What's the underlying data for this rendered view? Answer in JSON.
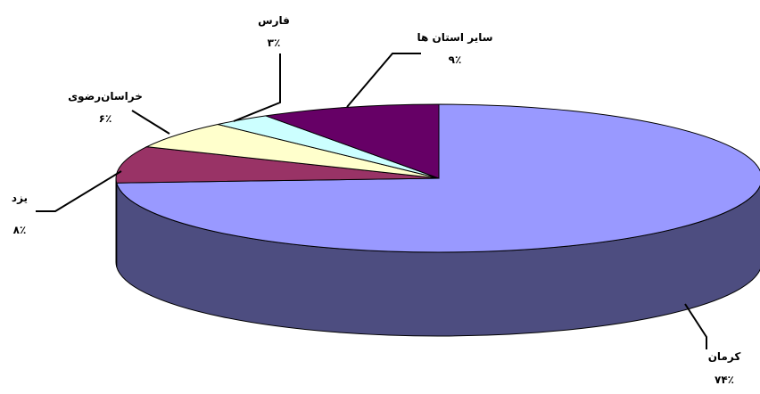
{
  "chart_data": {
    "type": "pie",
    "style": "3d",
    "slices": [
      {
        "name": "کرمان",
        "label": "کرمان",
        "value_label": "۷۴٪",
        "value": 74,
        "color": "#9999FF",
        "side_color": "#4D4D80"
      },
      {
        "name": "یزد",
        "label": "یزد",
        "value_label": "۸٪",
        "value": 8,
        "color": "#993366",
        "side_color": "#4D1A33"
      },
      {
        "name": "خراسان رضوی",
        "label": "خراسان‌رضوی",
        "value_label": "۶٪",
        "value": 6,
        "color": "#FFFFCC",
        "side_color": "#808066"
      },
      {
        "name": "فارس",
        "label": "فارس",
        "value_label": "۳٪",
        "value": 3,
        "color": "#CCFFFF",
        "side_color": "#668080"
      },
      {
        "name": "سایر استان ها",
        "label": "سایر استان ها",
        "value_label": "۹٪",
        "value": 9,
        "color": "#660066",
        "side_color": "#330033"
      }
    ]
  }
}
